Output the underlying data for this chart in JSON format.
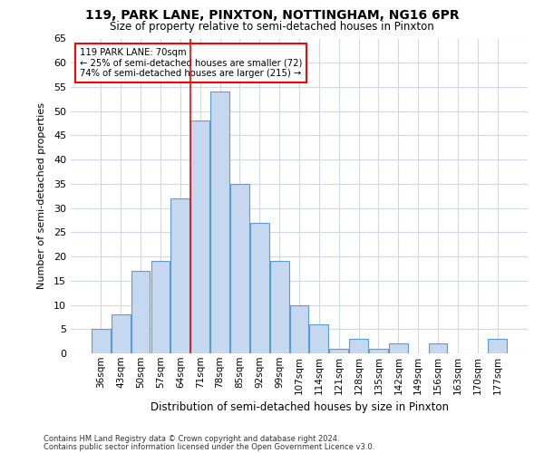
{
  "title1": "119, PARK LANE, PINXTON, NOTTINGHAM, NG16 6PR",
  "title2": "Size of property relative to semi-detached houses in Pinxton",
  "xlabel": "Distribution of semi-detached houses by size in Pinxton",
  "ylabel": "Number of semi-detached properties",
  "categories": [
    "36sqm",
    "43sqm",
    "50sqm",
    "57sqm",
    "64sqm",
    "71sqm",
    "78sqm",
    "85sqm",
    "92sqm",
    "99sqm",
    "107sqm",
    "114sqm",
    "121sqm",
    "128sqm",
    "135sqm",
    "142sqm",
    "149sqm",
    "156sqm",
    "163sqm",
    "170sqm",
    "177sqm"
  ],
  "values": [
    5,
    8,
    17,
    19,
    32,
    48,
    54,
    35,
    27,
    19,
    10,
    6,
    1,
    3,
    1,
    2,
    0,
    2,
    0,
    0,
    3
  ],
  "bar_color": "#c5d8f0",
  "bar_edge_color": "#5b9bd5",
  "marker_label": "119 PARK LANE: 70sqm",
  "smaller_pct": "25% of semi-detached houses are smaller (72)",
  "larger_pct": "74% of semi-detached houses are larger (215)",
  "vline_x": 4.5,
  "ylim": [
    0,
    65
  ],
  "yticks": [
    0,
    5,
    10,
    15,
    20,
    25,
    30,
    35,
    40,
    45,
    50,
    55,
    60,
    65
  ],
  "footnote1": "Contains HM Land Registry data © Crown copyright and database right 2024.",
  "footnote2": "Contains public sector information licensed under the Open Government Licence v3.0.",
  "bg_color": "#ffffff",
  "grid_color": "#d0d8e8"
}
